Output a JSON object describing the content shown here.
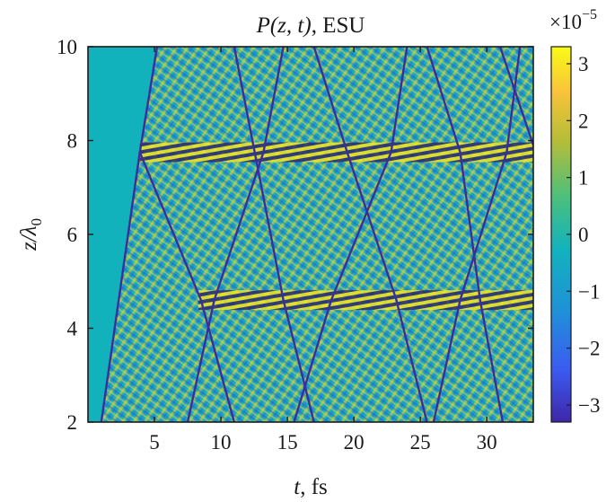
{
  "chart_data": {
    "type": "heatmap",
    "title": {
      "symbol": "P",
      "args": "(z, t)",
      "suffix": ", ESU"
    },
    "xlabel": {
      "var": "t",
      "unit": ", fs"
    },
    "ylabel": {
      "var": "z/λ",
      "sub": "0"
    },
    "xlim": [
      0,
      33.5
    ],
    "ylim": [
      2,
      10
    ],
    "xticks": [
      5,
      10,
      15,
      20,
      25,
      30
    ],
    "yticks": [
      2,
      4,
      6,
      8,
      10
    ],
    "colorbar": {
      "exponent_base": "×10",
      "exponent_power": "−5",
      "range": [
        -3.3,
        3.3
      ],
      "ticks": [
        {
          "value": 3,
          "label": "3"
        },
        {
          "value": 2,
          "label": "2"
        },
        {
          "value": 1,
          "label": "1"
        },
        {
          "value": 0,
          "label": "0"
        },
        {
          "value": -1,
          "label": "−1"
        },
        {
          "value": -2,
          "label": "−2"
        },
        {
          "value": -3,
          "label": "−3"
        }
      ],
      "colors": [
        "#3e26a8",
        "#3b5bf0",
        "#1f92d8",
        "#12b2bd",
        "#4bc07c",
        "#b6bd38",
        "#f9c33a",
        "#f9fb15"
      ]
    },
    "background_color": "#12b2bd",
    "features": {
      "reflection_layers_z": [
        7.75,
        4.6
      ],
      "front_lines": [
        {
          "t": [
            1,
            3.9
          ],
          "z": [
            2,
            7.75
          ]
        },
        {
          "t": [
            3.9,
            8.5
          ],
          "z": [
            7.75,
            4.6
          ]
        },
        {
          "t": [
            8.5,
            11
          ],
          "z": [
            4.6,
            2
          ]
        },
        {
          "t": [
            3.9,
            5.2
          ],
          "z": [
            7.75,
            10
          ]
        },
        {
          "t": [
            7.5,
            9.5
          ],
          "z": [
            2,
            4.6
          ]
        },
        {
          "t": [
            9.5,
            13.2
          ],
          "z": [
            4.6,
            7.75
          ]
        },
        {
          "t": [
            13.2,
            14.7
          ],
          "z": [
            7.75,
            10
          ]
        },
        {
          "t": [
            11,
            14.7
          ],
          "z": [
            10,
            4.6
          ]
        },
        {
          "t": [
            14.7,
            17
          ],
          "z": [
            4.6,
            2
          ]
        },
        {
          "t": [
            15.5,
            18.3
          ],
          "z": [
            2,
            4.6
          ]
        },
        {
          "t": [
            18.3,
            22.8
          ],
          "z": [
            4.6,
            7.75
          ]
        },
        {
          "t": [
            22.8,
            24
          ],
          "z": [
            7.75,
            10
          ]
        },
        {
          "t": [
            17,
            19.5
          ],
          "z": [
            10,
            7.75
          ]
        },
        {
          "t": [
            19.5,
            23.2
          ],
          "z": [
            7.75,
            4.6
          ]
        },
        {
          "t": [
            23.2,
            25.5
          ],
          "z": [
            4.6,
            2
          ]
        },
        {
          "t": [
            26,
            28
          ],
          "z": [
            2,
            4.6
          ]
        },
        {
          "t": [
            28,
            31.5
          ],
          "z": [
            4.6,
            7.75
          ]
        },
        {
          "t": [
            31.5,
            32.5
          ],
          "z": [
            7.75,
            10
          ]
        },
        {
          "t": [
            25.5,
            28
          ],
          "z": [
            10,
            7.75
          ]
        },
        {
          "t": [
            28,
            29.5
          ],
          "z": [
            7.75,
            4.6
          ]
        },
        {
          "t": [
            29.5,
            31.2
          ],
          "z": [
            4.6,
            2
          ]
        },
        {
          "t": [
            31,
            33.5
          ],
          "z": [
            10,
            7.9
          ]
        }
      ]
    }
  }
}
